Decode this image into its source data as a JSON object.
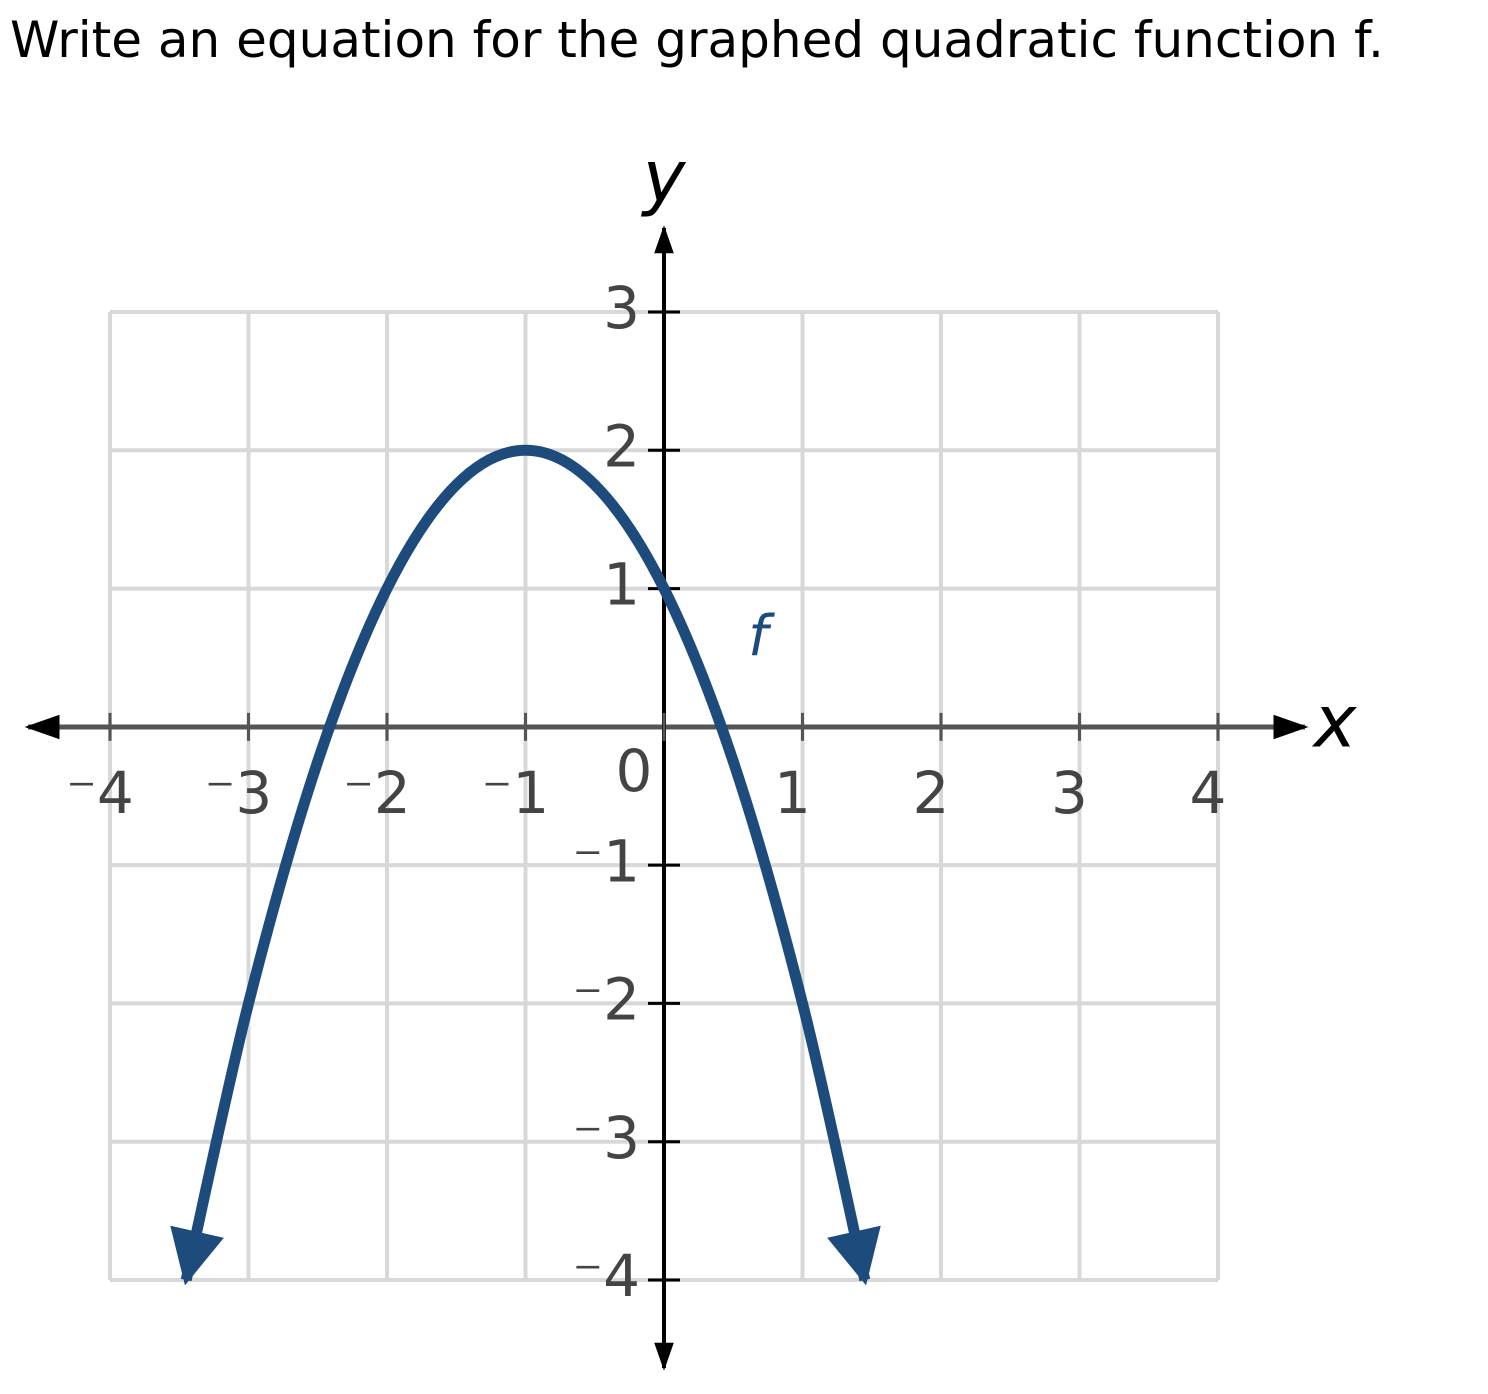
{
  "question": "Write an equation for the graphed quadratic function f.",
  "chart_data": {
    "type": "line",
    "x_label": "x",
    "y_label": "y",
    "curve_label": "f",
    "x": [
      -3.45,
      -3,
      -2.5,
      -2,
      -1.5,
      -1,
      -0.5,
      0,
      0.5,
      1,
      1.45
    ],
    "values": [
      -4,
      -2,
      -0.25,
      1,
      1.75,
      2,
      1.75,
      1,
      -0.25,
      -2,
      -4
    ],
    "color": "#1d4b7c",
    "xlim": [
      -4,
      4
    ],
    "ylim": [
      -4,
      3
    ],
    "xticks": [
      {
        "value": -4,
        "label": "⁻4"
      },
      {
        "value": -3,
        "label": "⁻3"
      },
      {
        "value": -2,
        "label": "⁻2"
      },
      {
        "value": -1,
        "label": "⁻1"
      },
      0,
      1,
      2,
      3,
      4
    ],
    "yticks": [
      {
        "value": -4,
        "label": "⁻4"
      },
      {
        "value": -3,
        "label": "⁻3"
      },
      {
        "value": -2,
        "label": "⁻2"
      },
      {
        "value": -1,
        "label": "⁻1"
      },
      1,
      2,
      3
    ],
    "grid": true
  }
}
